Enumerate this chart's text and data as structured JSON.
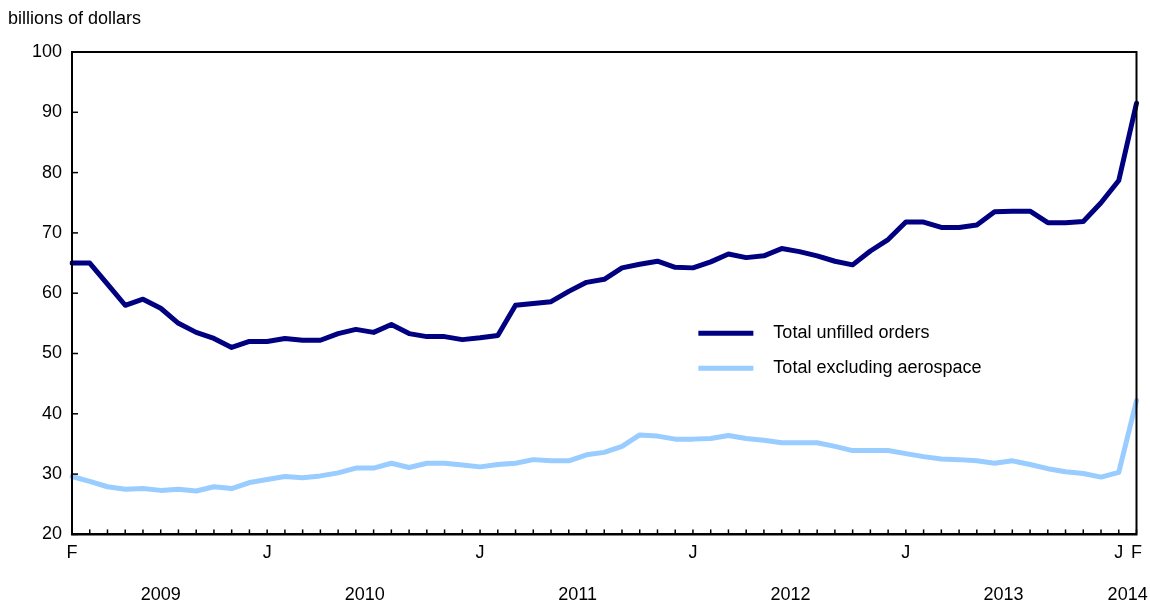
{
  "chart_data": {
    "type": "line",
    "ylabel": "billions of dollars",
    "categories": [
      "F",
      null,
      null,
      null,
      null,
      null,
      null,
      null,
      null,
      null,
      null,
      "J",
      null,
      null,
      null,
      null,
      null,
      null,
      null,
      null,
      null,
      null,
      null,
      "J",
      null,
      null,
      null,
      null,
      null,
      null,
      null,
      null,
      null,
      null,
      null,
      "J",
      null,
      null,
      null,
      null,
      null,
      null,
      null,
      null,
      null,
      null,
      null,
      "J",
      null,
      null,
      null,
      null,
      null,
      null,
      null,
      null,
      null,
      null,
      null,
      "J",
      "F"
    ],
    "series": [
      {
        "name": "Total unfilled orders",
        "color": "#000080",
        "values": [
          65,
          65,
          61.5,
          58,
          59,
          57.5,
          55,
          53.5,
          52.5,
          51,
          52,
          52,
          52.5,
          52.2,
          52.2,
          53.3,
          54,
          53.5,
          54.8,
          53.3,
          52.8,
          52.8,
          52.3,
          52.6,
          53,
          58,
          58.3,
          58.6,
          60.3,
          61.8,
          62.3,
          64.2,
          64.8,
          65.3,
          64.3,
          64.2,
          65.2,
          66.5,
          65.9,
          66.2,
          67.4,
          66.9,
          66.2,
          65.3,
          64.7,
          67,
          68.9,
          71.8,
          71.8,
          70.9,
          70.9,
          71.3,
          73.5,
          73.6,
          73.6,
          71.7,
          71.7,
          71.9,
          75,
          78.7,
          91.5
        ]
      },
      {
        "name": "Total excluding aerospace",
        "color": "#99ccff",
        "values": [
          29.6,
          28.8,
          27.9,
          27.5,
          27.6,
          27.3,
          27.5,
          27.2,
          27.9,
          27.6,
          28.6,
          29.1,
          29.6,
          29.4,
          29.7,
          30.2,
          31,
          31,
          31.8,
          31.1,
          31.8,
          31.8,
          31.5,
          31.2,
          31.6,
          31.8,
          32.4,
          32.2,
          32.2,
          33.2,
          33.6,
          34.6,
          36.5,
          36.3,
          35.8,
          35.8,
          35.9,
          36.4,
          35.9,
          35.6,
          35.2,
          35.2,
          35.2,
          34.6,
          33.9,
          33.9,
          33.9,
          33.4,
          32.9,
          32.5,
          32.4,
          32.2,
          31.8,
          32.2,
          31.6,
          30.9,
          30.4,
          30.1,
          29.5,
          30.3,
          42.2
        ]
      }
    ],
    "ylim": [
      20,
      100
    ],
    "yticks": [
      20,
      30,
      40,
      50,
      60,
      70,
      80,
      90,
      100
    ],
    "annotations": [
      "2009",
      "2010",
      "2011",
      "2012",
      "2013",
      "2014"
    ],
    "legend": "center right",
    "marker": "none",
    "line_style": "solid"
  }
}
